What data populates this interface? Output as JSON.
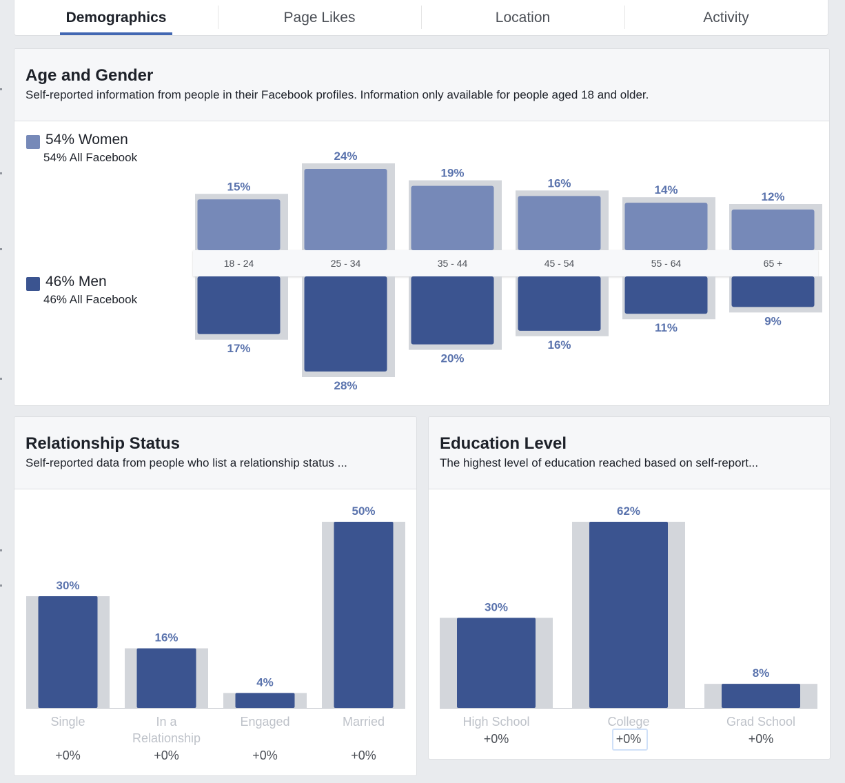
{
  "tabs": [
    {
      "label": "Demographics",
      "active": true
    },
    {
      "label": "Page Likes",
      "active": false
    },
    {
      "label": "Location",
      "active": false
    },
    {
      "label": "Activity",
      "active": false
    }
  ],
  "colors": {
    "women": "#7689b8",
    "men": "#3b5490",
    "bar_bg": "#d3d6db",
    "value_label": "#5a73ad",
    "axis_label": "#4b4f56",
    "muted_label": "#bec2c9"
  },
  "age_gender": {
    "title": "Age and Gender",
    "subtitle": "Self-reported information from people in their Facebook profiles. Information only available for people aged 18 and older.",
    "women_legend": "54% Women",
    "women_all": "54% All Facebook",
    "men_legend": "46% Men",
    "men_all": "46% All Facebook"
  },
  "relationship": {
    "title": "Relationship Status",
    "subtitle": "Self-reported data from people who list a relationship status ..."
  },
  "education": {
    "title": "Education Level",
    "subtitle": "The highest level of education reached based on self-report..."
  },
  "chart_data": [
    {
      "type": "bar",
      "title": "Age and Gender",
      "categories": [
        "18 - 24",
        "25 - 34",
        "35 - 44",
        "45 - 54",
        "55 - 64",
        "65 +"
      ],
      "series": [
        {
          "name": "Women",
          "values": [
            15,
            24,
            19,
            16,
            14,
            12
          ],
          "labels": [
            "15%",
            "24%",
            "19%",
            "16%",
            "14%",
            "12%"
          ]
        },
        {
          "name": "Men",
          "values": [
            17,
            28,
            20,
            16,
            11,
            9
          ],
          "labels": [
            "17%",
            "28%",
            "20%",
            "16%",
            "11%",
            "9%"
          ]
        }
      ]
    },
    {
      "type": "bar",
      "title": "Relationship Status",
      "categories": [
        "Single",
        "In a Relationship",
        "Engaged",
        "Married"
      ],
      "values": [
        30,
        16,
        4,
        50
      ],
      "value_labels": [
        "30%",
        "16%",
        "4%",
        "50%"
      ],
      "changes": [
        "+0%",
        "+0%",
        "+0%",
        "+0%"
      ]
    },
    {
      "type": "bar",
      "title": "Education Level",
      "categories": [
        "High School",
        "College",
        "Grad School"
      ],
      "values": [
        30,
        62,
        8
      ],
      "value_labels": [
        "30%",
        "62%",
        "8%"
      ],
      "changes": [
        "+0%",
        "+0%",
        "+0%"
      ]
    }
  ]
}
